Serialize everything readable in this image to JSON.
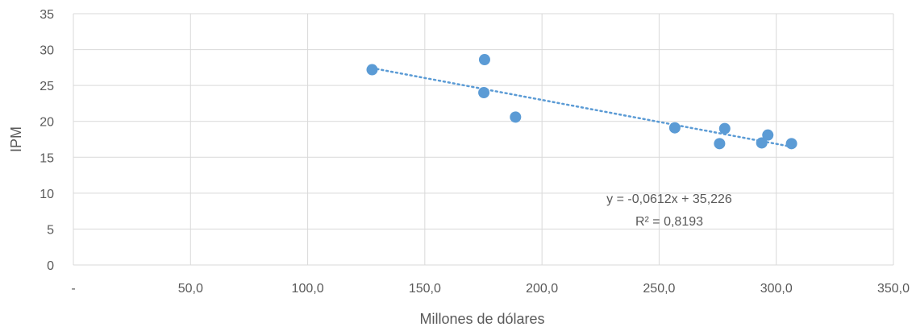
{
  "chart_data": {
    "type": "scatter",
    "title": "",
    "xlabel": "Millones de dólares",
    "ylabel": "IPM",
    "xlim": [
      0,
      350
    ],
    "ylim": [
      0,
      35
    ],
    "x_ticks": [
      0,
      50,
      100,
      150,
      200,
      250,
      300,
      350
    ],
    "x_tick_labels": [
      "-",
      "50,0",
      "100,0",
      "150,0",
      "200,0",
      "250,0",
      "300,0",
      "350,0"
    ],
    "y_ticks": [
      0,
      5,
      10,
      15,
      20,
      25,
      30,
      35
    ],
    "y_tick_labels": [
      "0",
      "5",
      "10",
      "15",
      "20",
      "25",
      "30",
      "35"
    ],
    "grid": true,
    "series": [
      {
        "color": "#5B9BD5",
        "points": [
          {
            "x": 127.5,
            "y": 27.2
          },
          {
            "x": 175.5,
            "y": 28.6
          },
          {
            "x": 175.2,
            "y": 24.0
          },
          {
            "x": 188.7,
            "y": 20.6
          },
          {
            "x": 256.7,
            "y": 19.1
          },
          {
            "x": 275.8,
            "y": 16.9
          },
          {
            "x": 278.0,
            "y": 19.0
          },
          {
            "x": 293.8,
            "y": 17.0
          },
          {
            "x": 296.4,
            "y": 18.1
          },
          {
            "x": 306.5,
            "y": 16.9
          }
        ]
      }
    ],
    "trendline": {
      "type": "linear",
      "slope": -0.0612,
      "intercept": 35.226,
      "x_range": [
        127.5,
        306.5
      ],
      "color": "#5B9BD5",
      "style": "dotted",
      "equation_label": "y = -0,0612x + 35,226",
      "r2_label": "R² = 0,8193"
    }
  }
}
